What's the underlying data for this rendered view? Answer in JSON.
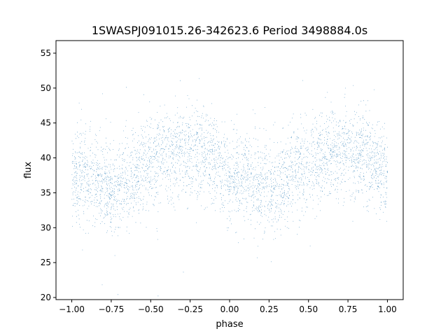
{
  "chart_data": {
    "type": "scatter",
    "title": "1SWASPJ091015.26-342623.6 Period 3498884.0s",
    "xlabel": "phase",
    "ylabel": "flux",
    "xlim": [
      -1.1,
      1.1
    ],
    "ylim": [
      19.7,
      56.8
    ],
    "x_ticks": [
      -1.0,
      -0.75,
      -0.5,
      -0.25,
      0.0,
      0.25,
      0.5,
      0.75,
      1.0
    ],
    "x_tick_labels": [
      "−1.00",
      "−0.75",
      "−0.50",
      "−0.25",
      "0.00",
      "0.25",
      "0.50",
      "0.75",
      "1.00"
    ],
    "y_ticks": [
      20,
      25,
      30,
      35,
      40,
      45,
      50,
      55
    ],
    "y_tick_labels": [
      "20",
      "25",
      "30",
      "35",
      "40",
      "45",
      "50",
      "55"
    ],
    "grid": false,
    "marker_color": "#1f77b4",
    "series": [
      {
        "x_range": [
          -1.0,
          1.0
        ],
        "profile_phase": [
          -1.0,
          -0.9,
          -0.8,
          -0.75,
          -0.7,
          -0.6,
          -0.5,
          -0.4,
          -0.3,
          -0.2,
          -0.1,
          0.0,
          0.1,
          0.2,
          0.25,
          0.3,
          0.4,
          0.5,
          0.6,
          0.7,
          0.8,
          0.9,
          1.0
        ],
        "profile_flux": [
          37.5,
          37.5,
          36.2,
          35.8,
          36.0,
          38.0,
          39.5,
          40.5,
          41.0,
          40.8,
          39.5,
          37.5,
          37.5,
          36.2,
          35.8,
          36.0,
          38.0,
          39.5,
          40.5,
          41.0,
          40.8,
          39.5,
          37.5
        ],
        "scatter_spread": 3.2,
        "approx_points": 9000
      }
    ]
  }
}
